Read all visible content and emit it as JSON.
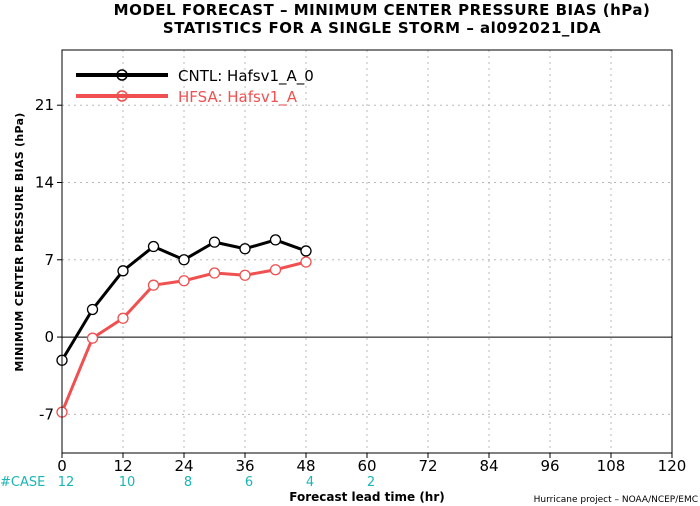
{
  "chart_data": {
    "type": "line",
    "title": "MODEL FORECAST – MINIMUM CENTER PRESSURE BIAS (hPa)",
    "subtitle": "STATISTICS FOR A SINGLE STORM – al092021_IDA",
    "xlabel": "Forecast lead time (hr)",
    "ylabel": "MINIMUM CENTER PRESSURE BIAS (hPa)",
    "xlim": [
      0,
      120
    ],
    "ylim": [
      -10.5,
      26
    ],
    "xticks": [
      0,
      12,
      24,
      36,
      48,
      60,
      72,
      84,
      96,
      108,
      120
    ],
    "yticks": [
      -7,
      0,
      7,
      14,
      21
    ],
    "grid": true,
    "legend_position": "top-left",
    "series": [
      {
        "name": "CNTL: Hafsv1_A_0",
        "color": "#000000",
        "x": [
          0,
          6,
          12,
          18,
          24,
          30,
          36,
          42,
          48
        ],
        "y": [
          -2.1,
          2.5,
          6.0,
          8.2,
          7.0,
          8.6,
          8.0,
          8.8,
          7.8
        ]
      },
      {
        "name": "HFSA: Hafsv1_A",
        "color": "#f05050",
        "x": [
          0,
          6,
          12,
          18,
          24,
          30,
          36,
          42,
          48
        ],
        "y": [
          -6.8,
          -0.1,
          1.7,
          4.7,
          5.1,
          5.8,
          5.6,
          6.1,
          6.8
        ]
      }
    ],
    "case_label": "#CASE",
    "case_counts": [
      {
        "x": 0,
        "label": "12"
      },
      {
        "x": 12,
        "label": "10"
      },
      {
        "x": 24,
        "label": "8"
      },
      {
        "x": 36,
        "label": "6"
      },
      {
        "x": 48,
        "label": "4"
      },
      {
        "x": 60,
        "label": "2"
      }
    ],
    "case_color": "#1ab5b5",
    "credit": "Hurricane project – NOAA/NCEP/EMC"
  }
}
